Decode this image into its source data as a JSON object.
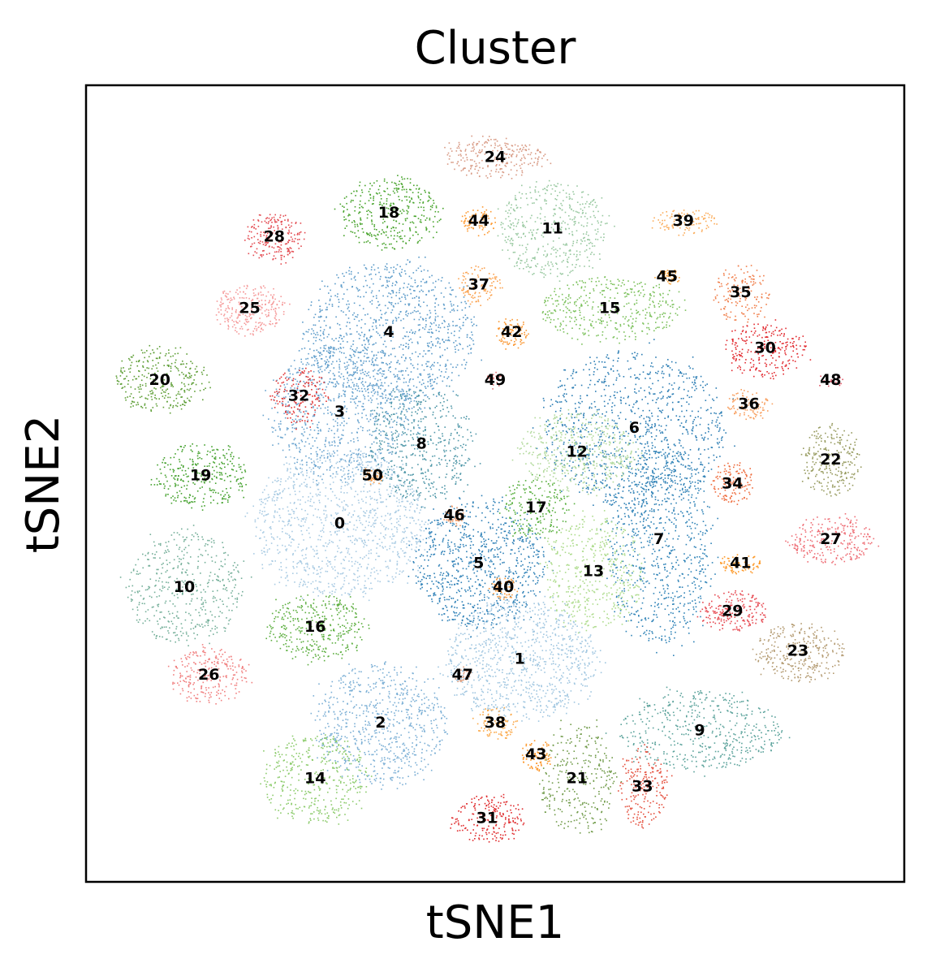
{
  "chart_data": {
    "type": "scatter",
    "title": "Cluster",
    "xlabel": "tSNE1",
    "ylabel": "tSNE2",
    "xlim": [
      0,
      100
    ],
    "ylim": [
      0,
      100
    ],
    "grid": false,
    "legend": "on data",
    "axis_ticks": false,
    "clusters": [
      {
        "id": "0",
        "label": "0",
        "x": 31,
        "y": 45,
        "rx": 10.5,
        "ry": 9.0,
        "density": 1100,
        "color": "#a9cbe3"
      },
      {
        "id": "1",
        "label": "1",
        "x": 53,
        "y": 28,
        "rx": 9.0,
        "ry": 7.5,
        "density": 900,
        "color": "#a0c6e0"
      },
      {
        "id": "2",
        "label": "2",
        "x": 36,
        "y": 20,
        "rx": 8.0,
        "ry": 7.5,
        "density": 700,
        "color": "#7bafd5"
      },
      {
        "id": "3",
        "label": "3",
        "x": 31,
        "y": 59,
        "rx": 8.5,
        "ry": 8.5,
        "density": 800,
        "color": "#6aa4cf"
      },
      {
        "id": "4",
        "label": "4",
        "x": 37,
        "y": 69,
        "rx": 10.5,
        "ry": 9.0,
        "density": 1000,
        "color": "#5b9bc9"
      },
      {
        "id": "5",
        "label": "5",
        "x": 48,
        "y": 40,
        "rx": 8.0,
        "ry": 8.0,
        "density": 800,
        "color": "#2c7fb6"
      },
      {
        "id": "6",
        "label": "6",
        "x": 67,
        "y": 57,
        "rx": 11.0,
        "ry": 10.0,
        "density": 1000,
        "color": "#2b7db4"
      },
      {
        "id": "7",
        "label": "7",
        "x": 70,
        "y": 43,
        "rx": 6.5,
        "ry": 13.0,
        "density": 800,
        "color": "#2f83b7"
      },
      {
        "id": "8",
        "label": "8",
        "x": 41,
        "y": 55,
        "rx": 6.5,
        "ry": 7.0,
        "density": 500,
        "color": "#4f97a8"
      },
      {
        "id": "9",
        "label": "9",
        "x": 75,
        "y": 19,
        "rx": 10.0,
        "ry": 5.0,
        "density": 500,
        "color": "#5aa29b"
      },
      {
        "id": "10",
        "label": "10",
        "x": 12,
        "y": 37,
        "rx": 7.0,
        "ry": 7.0,
        "density": 450,
        "color": "#74af99"
      },
      {
        "id": "11",
        "label": "11",
        "x": 57,
        "y": 82,
        "rx": 6.5,
        "ry": 6.0,
        "density": 450,
        "color": "#98c8a0"
      },
      {
        "id": "12",
        "label": "12",
        "x": 60,
        "y": 54,
        "rx": 7.0,
        "ry": 5.0,
        "density": 450,
        "color": "#b2d99c"
      },
      {
        "id": "13",
        "label": "13",
        "x": 62,
        "y": 39,
        "rx": 6.0,
        "ry": 7.0,
        "density": 450,
        "color": "#addb8c"
      },
      {
        "id": "14",
        "label": "14",
        "x": 28,
        "y": 13,
        "rx": 6.5,
        "ry": 5.5,
        "density": 400,
        "color": "#8ccb6b"
      },
      {
        "id": "15",
        "label": "15",
        "x": 64,
        "y": 72,
        "rx": 8.5,
        "ry": 4.0,
        "density": 400,
        "color": "#7bc05b"
      },
      {
        "id": "16",
        "label": "16",
        "x": 28,
        "y": 32,
        "rx": 6.0,
        "ry": 4.0,
        "density": 350,
        "color": "#5cae3f"
      },
      {
        "id": "17",
        "label": "17",
        "x": 55,
        "y": 47,
        "rx": 4.0,
        "ry": 4.0,
        "density": 200,
        "color": "#56ae3c"
      },
      {
        "id": "18",
        "label": "18",
        "x": 37,
        "y": 84,
        "rx": 6.0,
        "ry": 4.5,
        "density": 350,
        "color": "#47a32b"
      },
      {
        "id": "19",
        "label": "19",
        "x": 14,
        "y": 51,
        "rx": 5.5,
        "ry": 4.0,
        "density": 300,
        "color": "#43a12c"
      },
      {
        "id": "20",
        "label": "20",
        "x": 9,
        "y": 63,
        "rx": 5.5,
        "ry": 4.0,
        "density": 300,
        "color": "#5e9e36"
      },
      {
        "id": "21",
        "label": "21",
        "x": 60,
        "y": 13,
        "rx": 4.5,
        "ry": 7.0,
        "density": 300,
        "color": "#6f9a48"
      },
      {
        "id": "22",
        "label": "22",
        "x": 91,
        "y": 53,
        "rx": 3.5,
        "ry": 4.5,
        "density": 250,
        "color": "#969a5e"
      },
      {
        "id": "23",
        "label": "23",
        "x": 87,
        "y": 29,
        "rx": 5.5,
        "ry": 3.5,
        "density": 300,
        "color": "#b39a70"
      },
      {
        "id": "24",
        "label": "24",
        "x": 50,
        "y": 91,
        "rx": 6.0,
        "ry": 2.5,
        "density": 250,
        "color": "#d89a84"
      },
      {
        "id": "25",
        "label": "25",
        "x": 20,
        "y": 72,
        "rx": 4.5,
        "ry": 3.0,
        "density": 250,
        "color": "#f59a9a"
      },
      {
        "id": "26",
        "label": "26",
        "x": 15,
        "y": 26,
        "rx": 4.5,
        "ry": 3.5,
        "density": 250,
        "color": "#f08080"
      },
      {
        "id": "27",
        "label": "27",
        "x": 91,
        "y": 43,
        "rx": 5.0,
        "ry": 3.0,
        "density": 250,
        "color": "#ee6e76"
      },
      {
        "id": "28",
        "label": "28",
        "x": 23,
        "y": 81,
        "rx": 3.5,
        "ry": 3.0,
        "density": 200,
        "color": "#e34a50"
      },
      {
        "id": "29",
        "label": "29",
        "x": 79,
        "y": 34,
        "rx": 4.0,
        "ry": 2.5,
        "density": 200,
        "color": "#e6474f"
      },
      {
        "id": "30",
        "label": "30",
        "x": 83,
        "y": 67,
        "rx": 5.0,
        "ry": 3.5,
        "density": 250,
        "color": "#e22b31"
      },
      {
        "id": "31",
        "label": "31",
        "x": 49,
        "y": 8,
        "rx": 4.5,
        "ry": 3.0,
        "density": 200,
        "color": "#df2a2c"
      },
      {
        "id": "32",
        "label": "32",
        "x": 26,
        "y": 61,
        "rx": 3.5,
        "ry": 3.5,
        "density": 150,
        "color": "#e03131"
      },
      {
        "id": "33",
        "label": "33",
        "x": 68,
        "y": 12,
        "rx": 3.0,
        "ry": 5.0,
        "density": 200,
        "color": "#e44f3d"
      },
      {
        "id": "34",
        "label": "34",
        "x": 79,
        "y": 50,
        "rx": 2.5,
        "ry": 2.5,
        "density": 120,
        "color": "#ee6a3a"
      },
      {
        "id": "35",
        "label": "35",
        "x": 80,
        "y": 74,
        "rx": 3.5,
        "ry": 3.5,
        "density": 150,
        "color": "#f07e4a"
      },
      {
        "id": "36",
        "label": "36",
        "x": 81,
        "y": 60,
        "rx": 2.5,
        "ry": 2.0,
        "density": 100,
        "color": "#f8a060"
      },
      {
        "id": "37",
        "label": "37",
        "x": 48,
        "y": 75,
        "rx": 2.5,
        "ry": 2.5,
        "density": 100,
        "color": "#fba24f"
      },
      {
        "id": "38",
        "label": "38",
        "x": 50,
        "y": 20,
        "rx": 2.5,
        "ry": 2.0,
        "density": 100,
        "color": "#fba848"
      },
      {
        "id": "39",
        "label": "39",
        "x": 73,
        "y": 83,
        "rx": 4.0,
        "ry": 1.5,
        "density": 100,
        "color": "#fbac5a"
      },
      {
        "id": "40",
        "label": "40",
        "x": 51,
        "y": 37,
        "rx": 1.5,
        "ry": 1.5,
        "density": 60,
        "color": "#fb9a3e"
      },
      {
        "id": "41",
        "label": "41",
        "x": 80,
        "y": 40,
        "rx": 2.5,
        "ry": 1.2,
        "density": 80,
        "color": "#fd9a2a"
      },
      {
        "id": "42",
        "label": "42",
        "x": 52,
        "y": 69,
        "rx": 1.8,
        "ry": 2.0,
        "density": 80,
        "color": "#fb9630"
      },
      {
        "id": "43",
        "label": "43",
        "x": 55,
        "y": 16,
        "rx": 1.8,
        "ry": 2.0,
        "density": 80,
        "color": "#fc9424"
      },
      {
        "id": "44",
        "label": "44",
        "x": 48,
        "y": 83,
        "rx": 2.0,
        "ry": 1.5,
        "density": 80,
        "color": "#fd9930"
      },
      {
        "id": "45",
        "label": "45",
        "x": 71,
        "y": 76,
        "rx": 1.5,
        "ry": 1.0,
        "density": 50,
        "color": "#fca238"
      },
      {
        "id": "46",
        "label": "46",
        "x": 45,
        "y": 46,
        "rx": 1.2,
        "ry": 1.2,
        "density": 40,
        "color": "#f0a070"
      },
      {
        "id": "47",
        "label": "47",
        "x": 46,
        "y": 26,
        "rx": 1.0,
        "ry": 0.8,
        "density": 30,
        "color": "#e0a080"
      },
      {
        "id": "48",
        "label": "48",
        "x": 91,
        "y": 63,
        "rx": 1.5,
        "ry": 0.6,
        "density": 20,
        "color": "#e05060"
      },
      {
        "id": "49",
        "label": "49",
        "x": 50,
        "y": 63,
        "rx": 1.0,
        "ry": 1.0,
        "density": 20,
        "color": "#e07070"
      },
      {
        "id": "50",
        "label": "50",
        "x": 35,
        "y": 51,
        "rx": 1.2,
        "ry": 1.0,
        "density": 40,
        "color": "#f79a46"
      }
    ]
  }
}
